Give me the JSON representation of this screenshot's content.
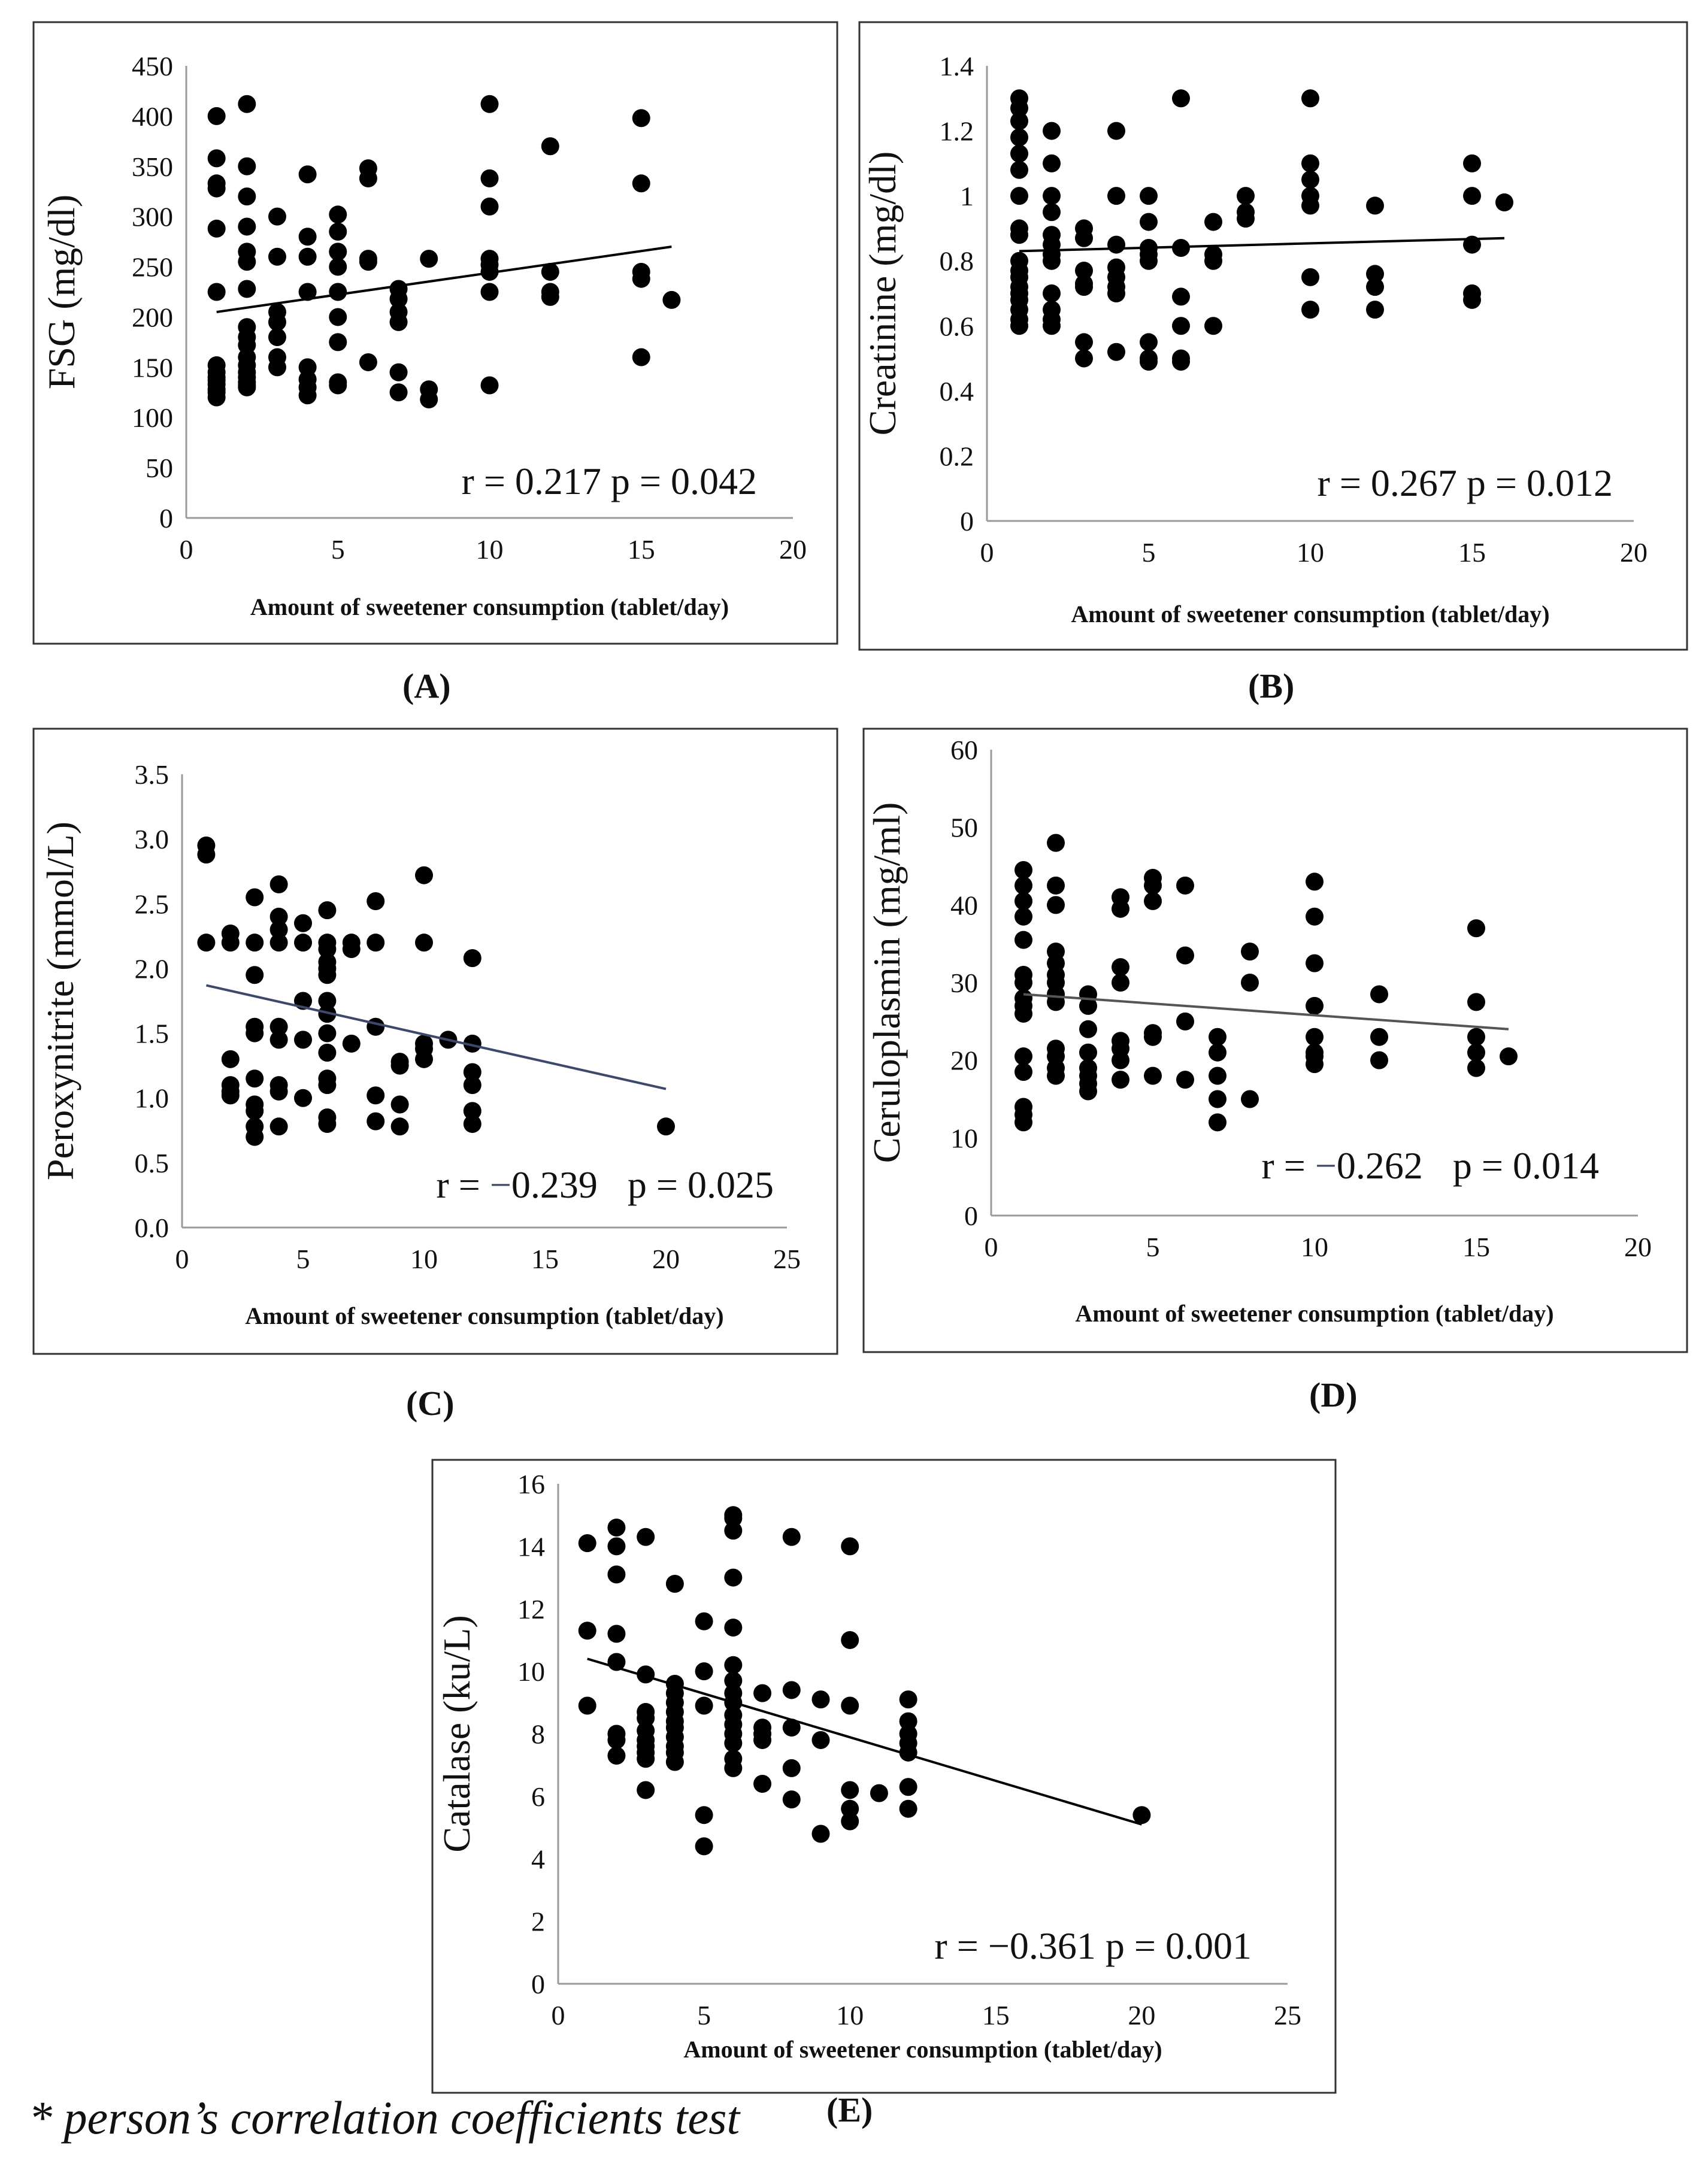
{
  "footnote": "* person’s correlation coefficients test",
  "chart_data": [
    {
      "id": "A",
      "panel_label": "(A)",
      "type": "scatter",
      "xlabel": "Amount of sweetener consumption (tablet/day)",
      "ylabel": "FSG (mg/dl)",
      "xlim": [
        0,
        20
      ],
      "ylim": [
        0,
        450
      ],
      "xticks": [
        0,
        5,
        10,
        15,
        20
      ],
      "yticks": [
        0,
        50,
        100,
        150,
        200,
        250,
        300,
        350,
        400,
        450
      ],
      "ytick_labels": [
        "0",
        "50",
        "100",
        "150",
        "200",
        "250",
        "300",
        "350",
        "400",
        "450"
      ],
      "annotation": "r = 0.217    p = 0.042",
      "trendline": {
        "x": [
          1,
          16
        ],
        "y": [
          205,
          270
        ],
        "color": "#000000"
      },
      "points": {
        "x": [
          1,
          1,
          1,
          1,
          1,
          1,
          1,
          1,
          1,
          1,
          1,
          1,
          1,
          1,
          2,
          2,
          2,
          2,
          2,
          2,
          2,
          2,
          2,
          2,
          2,
          2,
          2,
          2,
          2,
          2,
          2,
          3,
          3,
          3,
          3,
          3,
          3,
          3,
          4,
          4,
          4,
          4,
          4,
          4,
          4,
          4,
          5,
          5,
          5,
          5,
          5,
          5,
          5,
          5,
          5,
          6,
          6,
          6,
          6,
          6,
          7,
          7,
          7,
          7,
          7,
          7,
          8,
          8,
          8,
          10,
          10,
          10,
          10,
          10,
          10,
          10,
          10,
          12,
          12,
          12,
          12,
          15,
          15,
          15,
          15,
          15,
          16
        ],
        "y": [
          400,
          358,
          333,
          328,
          288,
          225,
          152,
          145,
          140,
          137,
          133,
          128,
          125,
          120,
          412,
          350,
          320,
          290,
          265,
          255,
          228,
          190,
          180,
          172,
          160,
          152,
          145,
          140,
          135,
          132,
          130,
          300,
          260,
          205,
          195,
          180,
          160,
          150,
          342,
          280,
          260,
          225,
          150,
          138,
          130,
          122,
          302,
          285,
          265,
          250,
          225,
          200,
          175,
          135,
          132,
          348,
          338,
          258,
          255,
          155,
          228,
          218,
          205,
          195,
          145,
          125,
          258,
          128,
          118,
          412,
          338,
          310,
          258,
          252,
          245,
          225,
          132,
          370,
          245,
          225,
          220,
          398,
          333,
          245,
          238,
          160,
          217
        ]
      },
      "color": "#000000"
    },
    {
      "id": "B",
      "panel_label": "(B)",
      "type": "scatter",
      "xlabel": "Amount of sweetener consumption (tablet/day)",
      "ylabel": "Creatinine (mg/dl)",
      "xlim": [
        0,
        20
      ],
      "ylim": [
        0,
        1.4
      ],
      "xticks": [
        0,
        5,
        10,
        15,
        20
      ],
      "yticks": [
        0,
        0.2,
        0.4,
        0.6,
        0.8,
        1.0,
        1.2,
        1.4
      ],
      "ytick_labels": [
        "0",
        "0.2",
        "0.4",
        "0.6",
        "0.8",
        "1",
        "1.2",
        "1.4"
      ],
      "annotation": "r = 0.267    p = 0.012",
      "trendline": {
        "x": [
          1,
          16
        ],
        "y": [
          0.83,
          0.87
        ],
        "color": "#000000"
      },
      "points": {
        "x": [
          1,
          1,
          1,
          1,
          1,
          1,
          1,
          1,
          1,
          1,
          1,
          1,
          1,
          1,
          1,
          1,
          1,
          1,
          2,
          2,
          2,
          2,
          2,
          2,
          2,
          2,
          2,
          2,
          2,
          2,
          3,
          3,
          3,
          3,
          3,
          3,
          3,
          4,
          4,
          4,
          4,
          4,
          4,
          4,
          4,
          5,
          5,
          5,
          5,
          5,
          5,
          5,
          5,
          6,
          6,
          6,
          6,
          6,
          6,
          7,
          7,
          7,
          7,
          8,
          8,
          8,
          10,
          10,
          10,
          10,
          10,
          10,
          10,
          12,
          12,
          12,
          12,
          15,
          15,
          15,
          15,
          15,
          16
        ],
        "y": [
          1.3,
          1.27,
          1.23,
          1.18,
          1.13,
          1.08,
          1.0,
          0.9,
          0.88,
          0.8,
          0.77,
          0.75,
          0.72,
          0.7,
          0.68,
          0.65,
          0.62,
          0.6,
          1.2,
          1.1,
          1.0,
          0.95,
          0.88,
          0.85,
          0.82,
          0.8,
          0.7,
          0.65,
          0.62,
          0.6,
          0.9,
          0.87,
          0.77,
          0.73,
          0.72,
          0.55,
          0.5,
          1.2,
          1.0,
          0.85,
          0.78,
          0.75,
          0.72,
          0.7,
          0.52,
          1.0,
          0.92,
          0.84,
          0.82,
          0.8,
          0.55,
          0.5,
          0.49,
          1.3,
          0.84,
          0.69,
          0.6,
          0.5,
          0.49,
          0.92,
          0.82,
          0.8,
          0.6,
          1.0,
          0.95,
          0.93,
          1.3,
          1.1,
          1.05,
          1.0,
          0.97,
          0.75,
          0.65,
          0.97,
          0.76,
          0.72,
          0.65,
          1.1,
          1.0,
          0.85,
          0.7,
          0.68,
          0.98
        ]
      },
      "color": "#000000"
    },
    {
      "id": "C",
      "panel_label": "(C)",
      "type": "scatter",
      "xlabel": "Amount of sweetener consumption (tablet/day)",
      "ylabel": "Peroxynitrite (mmol/L)",
      "xlim": [
        0,
        25
      ],
      "ylim": [
        0,
        3.5
      ],
      "xticks": [
        0,
        5,
        10,
        15,
        20,
        25
      ],
      "yticks": [
        0,
        0.5,
        1.0,
        1.5,
        2.0,
        2.5,
        3.0,
        3.5
      ],
      "ytick_labels": [
        "0.0",
        "0.5",
        "1.0",
        "1.5",
        "2.0",
        "2.5",
        "3.0",
        "3.5"
      ],
      "annotation_r_prefix": "r = ",
      "annotation_r_sign": "−",
      "annotation_r_value": "0.239",
      "annotation_p": "p = 0.025",
      "trendline": {
        "x": [
          1,
          20
        ],
        "y": [
          1.87,
          1.07
        ],
        "color": "#3b4a6b"
      },
      "points": {
        "x": [
          1,
          1,
          1,
          2,
          2,
          2,
          2,
          2,
          2,
          3,
          3,
          3,
          3,
          3,
          3,
          3,
          3,
          3,
          3,
          4,
          4,
          4,
          4,
          4,
          4,
          4,
          4,
          4,
          5,
          5,
          5,
          5,
          5,
          6,
          6,
          6,
          6,
          6,
          6,
          6,
          6,
          6,
          6,
          6,
          6,
          6,
          6,
          7,
          7,
          7,
          8,
          8,
          8,
          8,
          8,
          9,
          9,
          9,
          9,
          10,
          10,
          10,
          10,
          10,
          11,
          12,
          12,
          12,
          12,
          12,
          12,
          20
        ],
        "y": [
          2.95,
          2.88,
          2.2,
          2.27,
          2.2,
          1.3,
          1.1,
          1.05,
          1.02,
          2.55,
          2.2,
          1.95,
          1.55,
          1.5,
          1.15,
          0.95,
          0.9,
          0.78,
          0.7,
          2.65,
          2.4,
          2.3,
          2.2,
          1.55,
          1.45,
          1.1,
          1.05,
          0.78,
          2.35,
          2.2,
          1.75,
          1.45,
          1.0,
          2.45,
          2.2,
          2.15,
          2.05,
          2.0,
          1.95,
          1.75,
          1.65,
          1.5,
          1.35,
          1.15,
          1.1,
          0.85,
          0.8,
          2.2,
          2.15,
          1.42,
          2.52,
          2.2,
          1.55,
          1.02,
          0.82,
          1.28,
          1.25,
          0.95,
          0.78,
          2.72,
          2.2,
          1.42,
          1.38,
          1.3,
          1.45,
          2.08,
          1.42,
          1.2,
          1.1,
          0.9,
          0.8,
          0.78
        ]
      },
      "color": "#000000"
    },
    {
      "id": "D",
      "panel_label": "(D)",
      "type": "scatter",
      "xlabel": "Amount of sweetener consumption (tablet/day)",
      "ylabel": "Ceruloplasmin (mg/ml)",
      "xlim": [
        0,
        20
      ],
      "ylim": [
        0,
        60
      ],
      "xticks": [
        0,
        5,
        10,
        15,
        20
      ],
      "yticks": [
        0,
        10,
        20,
        30,
        40,
        50,
        60
      ],
      "ytick_labels": [
        "0",
        "10",
        "20",
        "30",
        "40",
        "50",
        "60"
      ],
      "annotation_r_prefix": "r = ",
      "annotation_r_sign": "−",
      "annotation_r_value": "0.262",
      "annotation_p": "p = 0.014",
      "trendline": {
        "x": [
          1,
          16
        ],
        "y": [
          28.5,
          24
        ],
        "color": "#555555"
      },
      "points": {
        "x": [
          1,
          1,
          1,
          1,
          1,
          1,
          1,
          1,
          1,
          1,
          1,
          1,
          1,
          1,
          1,
          2,
          2,
          2,
          2,
          2,
          2,
          2,
          2,
          2,
          2,
          2,
          2,
          2,
          3,
          3,
          3,
          3,
          3,
          3,
          3,
          3,
          4,
          4,
          4,
          4,
          4,
          4,
          4,
          4,
          5,
          5,
          5,
          5,
          5,
          5,
          6,
          6,
          6,
          6,
          7,
          7,
          7,
          7,
          7,
          8,
          8,
          8,
          10,
          10,
          10,
          10,
          10,
          10,
          10,
          10,
          12,
          12,
          12,
          15,
          15,
          15,
          15,
          15,
          16
        ],
        "y": [
          44.5,
          42.5,
          40.5,
          38.5,
          35.5,
          31,
          30,
          28,
          27,
          26,
          20.5,
          18.5,
          14,
          13,
          12,
          48,
          42.5,
          40,
          34,
          32.5,
          31,
          30,
          28.5,
          27.5,
          21.5,
          20.5,
          19,
          18,
          28.5,
          27,
          24,
          21,
          19,
          18,
          17,
          16,
          41,
          39.5,
          32,
          30,
          22.5,
          21.5,
          20,
          17.5,
          43.5,
          42.5,
          40.5,
          23.5,
          23,
          18,
          42.5,
          33.5,
          25,
          17.5,
          23,
          21,
          18,
          15,
          12,
          34,
          30,
          15,
          43,
          38.5,
          32.5,
          27,
          23,
          21,
          20.5,
          19.5,
          28.5,
          23,
          20,
          37,
          27.5,
          23,
          21,
          19,
          20.5
        ]
      },
      "color": "#000000"
    },
    {
      "id": "E",
      "panel_label": "(E)",
      "type": "scatter",
      "xlabel": "Amount of sweetener consumption (tablet/day)",
      "ylabel": "Catalase (ku/L)",
      "xlim": [
        0,
        25
      ],
      "ylim": [
        0,
        16
      ],
      "xticks": [
        0,
        5,
        10,
        15,
        20,
        25
      ],
      "yticks": [
        0,
        2,
        4,
        6,
        8,
        10,
        12,
        14,
        16
      ],
      "ytick_labels": [
        "0",
        "2",
        "4",
        "6",
        "8",
        "10",
        "12",
        "14",
        "16"
      ],
      "annotation": "r = −0.361    p = 0.001",
      "trendline": {
        "x": [
          1,
          20
        ],
        "y": [
          10.4,
          5.1
        ],
        "color": "#000000"
      },
      "points": {
        "x": [
          1,
          1,
          1,
          2,
          2,
          2,
          2,
          2,
          2,
          2,
          2,
          3,
          3,
          3,
          3,
          3,
          3,
          3,
          3,
          3,
          3,
          4,
          4,
          4,
          4,
          4,
          4,
          4,
          4,
          4,
          4,
          4,
          5,
          5,
          5,
          5,
          5,
          6,
          6,
          6,
          6,
          6,
          6,
          6,
          6,
          6,
          6,
          6,
          6,
          6,
          6,
          6,
          7,
          7,
          7,
          7,
          7,
          8,
          8,
          8,
          8,
          8,
          9,
          9,
          9,
          10,
          10,
          10,
          10,
          10,
          10,
          11,
          12,
          12,
          12,
          12,
          12,
          12,
          12,
          20
        ],
        "y": [
          14.1,
          11.3,
          8.9,
          14.6,
          14.0,
          13.1,
          11.2,
          10.3,
          8.0,
          7.8,
          7.3,
          14.3,
          9.9,
          8.7,
          8.5,
          8.1,
          7.8,
          7.6,
          7.4,
          7.2,
          6.2,
          12.8,
          9.6,
          9.3,
          9.0,
          8.7,
          8.4,
          8.2,
          7.9,
          7.6,
          7.4,
          7.1,
          11.6,
          10.0,
          8.9,
          5.4,
          4.4,
          15.0,
          14.9,
          14.5,
          13.0,
          11.4,
          10.2,
          9.7,
          9.3,
          9.0,
          8.6,
          8.3,
          8.0,
          7.7,
          7.2,
          6.9,
          9.3,
          8.2,
          8.0,
          7.8,
          6.4,
          14.3,
          9.4,
          8.2,
          6.9,
          5.9,
          9.1,
          7.8,
          4.8,
          14.0,
          11.0,
          8.9,
          6.2,
          5.6,
          5.2,
          6.1,
          9.1,
          8.4,
          8.0,
          7.7,
          7.4,
          6.3,
          5.6,
          5.4
        ]
      },
      "color": "#000000"
    }
  ]
}
